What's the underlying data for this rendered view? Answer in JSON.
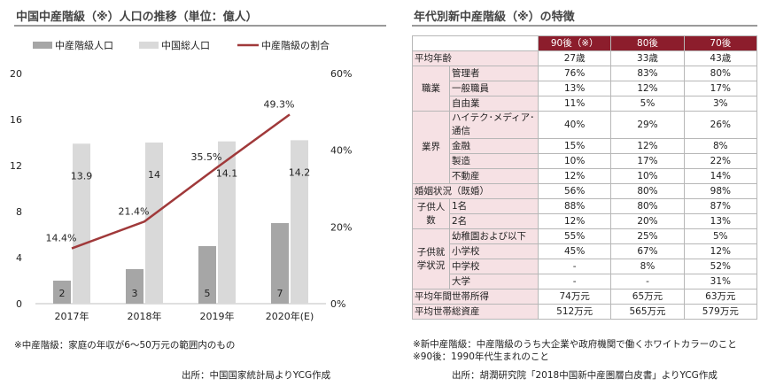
{
  "left_panel": {
    "title": "中国中産階級（※）人口の推移（単位：億人）",
    "note": "※中産階級：家庭の年収が6～50万元の範囲内のもの",
    "source": "出所：中国国家統計局よりYCG作成"
  },
  "chart_data": {
    "type": "bar",
    "categories": [
      "2017年",
      "2018年",
      "2019年",
      "2020年(E)"
    ],
    "series": [
      {
        "name": "中産階級人口",
        "type": "bar",
        "axis": "left",
        "color": "#a6a6a6",
        "values": [
          2,
          3,
          5,
          7
        ]
      },
      {
        "name": "中国総人口",
        "type": "bar",
        "axis": "left",
        "color": "#d9d9d9",
        "values": [
          13.9,
          14,
          14.1,
          14.2
        ]
      },
      {
        "name": "中産階級の割合",
        "type": "line",
        "axis": "right",
        "color": "#a0393a",
        "values": [
          14.4,
          21.4,
          35.5,
          49.3
        ],
        "labels": [
          "14.4%",
          "21.4%",
          "35.5%",
          "49.3%"
        ]
      }
    ],
    "bar_labels": [
      [
        "2",
        "3",
        "5",
        "7"
      ],
      [
        "13.9",
        "14",
        "14.1",
        "14.2"
      ]
    ],
    "y_left": {
      "range": [
        0,
        20
      ],
      "ticks": [
        "0",
        "4",
        "8",
        "12",
        "16",
        "20"
      ]
    },
    "y_right": {
      "range": [
        0,
        60
      ],
      "ticks": [
        "0%",
        "20%",
        "40%",
        "60%"
      ]
    },
    "legend_position": "top",
    "grid": false
  },
  "right_panel": {
    "title": "年代別新中産階級（※）の特徴",
    "headers": [
      "90後（※）",
      "80後",
      "70後"
    ],
    "rows": [
      {
        "group": "平均年齢",
        "label": "",
        "v": [
          "27歳",
          "33歳",
          "43歳"
        ]
      },
      {
        "group": "職業",
        "label": "管理者",
        "v": [
          "76%",
          "83%",
          "80%"
        ]
      },
      {
        "group": "",
        "label": "一般職員",
        "v": [
          "13%",
          "12%",
          "17%"
        ]
      },
      {
        "group": "",
        "label": "自由業",
        "v": [
          "11%",
          "5%",
          "3%"
        ]
      },
      {
        "group": "業界",
        "label": "ハイテク･メディア･通信",
        "v": [
          "40%",
          "29%",
          "26%"
        ]
      },
      {
        "group": "",
        "label": "金融",
        "v": [
          "15%",
          "12%",
          "8%"
        ]
      },
      {
        "group": "",
        "label": "製造",
        "v": [
          "10%",
          "17%",
          "22%"
        ]
      },
      {
        "group": "",
        "label": "不動産",
        "v": [
          "12%",
          "10%",
          "14%"
        ]
      },
      {
        "group": "婚姻状況（既婚）",
        "label": "",
        "v": [
          "56%",
          "80%",
          "98%"
        ]
      },
      {
        "group": "子供人数",
        "label": "1名",
        "v": [
          "88%",
          "80%",
          "87%"
        ]
      },
      {
        "group": "",
        "label": "2名",
        "v": [
          "12%",
          "20%",
          "13%"
        ]
      },
      {
        "group": "子供就学状況",
        "label": "幼稚園および以下",
        "v": [
          "55%",
          "25%",
          "5%"
        ]
      },
      {
        "group": "",
        "label": "小学校",
        "v": [
          "45%",
          "67%",
          "12%"
        ]
      },
      {
        "group": "",
        "label": "中学校",
        "v": [
          "-",
          "8%",
          "52%"
        ]
      },
      {
        "group": "",
        "label": "大学",
        "v": [
          "-",
          "-",
          "31%"
        ]
      },
      {
        "group": "平均年間世帯所得",
        "label": "",
        "v": [
          "74万元",
          "65万元",
          "63万元"
        ]
      },
      {
        "group": "平均世帯総資産",
        "label": "",
        "v": [
          "512万元",
          "565万元",
          "579万元"
        ]
      }
    ],
    "notes": [
      "※新中産階級：中産階級のうち大企業や政府機関で働くホワイトカラーのこと",
      "※90後：1990年代生まれのこと"
    ],
    "source": "出所：胡潤研究院「2018中国新中産圏層白皮書」よりYCG作成"
  }
}
